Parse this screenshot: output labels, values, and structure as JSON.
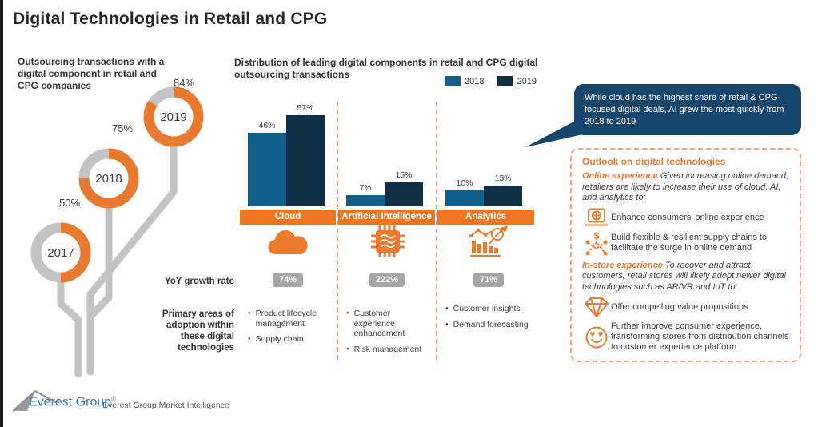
{
  "page": {
    "title": "Digital Technologies in Retail and CPG"
  },
  "colors": {
    "orange": "#EE7623",
    "orange_dash": "#F2A175",
    "blue_2018": "#135F8C",
    "navy_2019": "#0E2E45",
    "navy_callout": "#16466B",
    "gray_ring": "#C3C3C3",
    "gray_badge": "#A6A6A6"
  },
  "timeline": {
    "heading": "Outsourcing transactions with a digital component in retail and CPG companies"
  },
  "chart": {
    "heading": "Distribution of leading digital components in retail and CPG digital outsourcing transactions"
  },
  "chart_data": [
    {
      "type": "pie",
      "subtype": "donut-timeline",
      "title": "Outsourcing transactions with a digital component in retail and CPG companies",
      "categories": [
        "2017",
        "2018",
        "2019"
      ],
      "values": [
        50,
        75,
        84
      ],
      "unit": "%"
    },
    {
      "type": "bar",
      "title": "Distribution of leading digital components in retail and CPG digital outsourcing transactions",
      "categories": [
        "Cloud",
        "Artificial Intelligence",
        "Analytics"
      ],
      "series": [
        {
          "name": "2018",
          "values": [
            46,
            7,
            10
          ]
        },
        {
          "name": "2019",
          "values": [
            57,
            15,
            13
          ]
        }
      ],
      "unit": "%",
      "ylim": [
        0,
        60
      ],
      "grid": false,
      "legend_position": "top-right"
    }
  ],
  "growth": {
    "label": "YoY growth rate",
    "values": [
      "74%",
      "222%",
      "71%"
    ]
  },
  "adoption": {
    "label": "Primary areas of adoption within these digital technologies",
    "columns": [
      {
        "items": [
          "Product lifecycle management",
          "Supply chain"
        ]
      },
      {
        "items": [
          "Customer experience enhancement",
          "Risk management"
        ]
      },
      {
        "items": [
          "Customer insights",
          "Demand forecasting"
        ]
      }
    ]
  },
  "callout": {
    "text": "While cloud has the highest share of retail & CPG-focused digital deals, AI grew the most quickly from 2018 to 2019"
  },
  "outlook": {
    "heading": "Outlook on digital technologies",
    "sections": [
      {
        "lead": "Online experience",
        "text": " Given increasing online demand, retailers are likely to increase their use of cloud, AI, and analytics to:",
        "bullets": [
          {
            "icon": "laptop-globe-icon",
            "text": "Enhance consumers’ online experience"
          },
          {
            "icon": "supply-chain-dollar-icon",
            "text": "Build flexible & resilient supply chains to facilitate the surge in online demand"
          }
        ]
      },
      {
        "lead": "In-store experience",
        "text": " To recover and attract customers, retail stores will likely adopt newer digital technologies such as AR/VR and IoT to:",
        "bullets": [
          {
            "icon": "diamond-icon",
            "text": "Offer compelling value propositions"
          },
          {
            "icon": "smiley-hearts-icon",
            "text": "Further improve consumer experience, transforming stores from distribution channels to customer experience platform"
          }
        ]
      }
    ]
  },
  "footer": {
    "logo_text": "Everest Group",
    "registered": "®",
    "caption": "Everest Group Market Intelligence"
  }
}
